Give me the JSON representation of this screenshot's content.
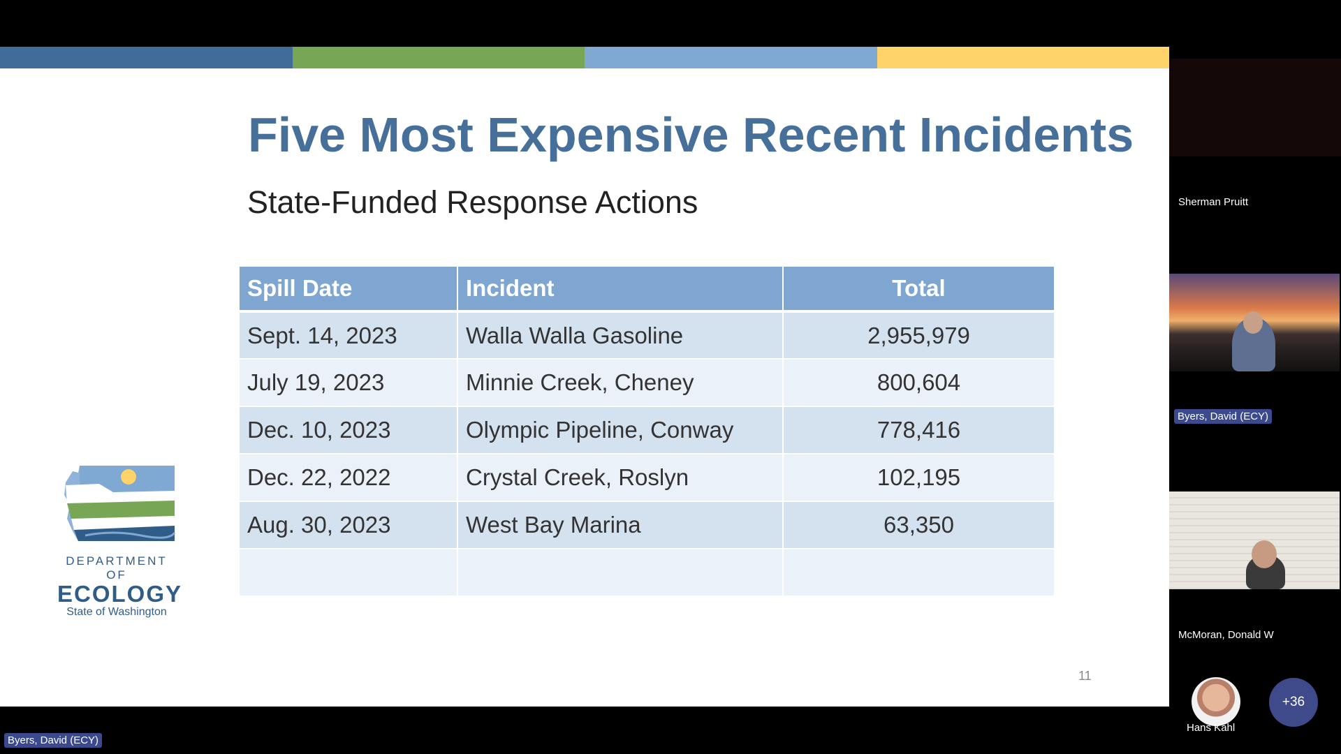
{
  "slide": {
    "accent_colors": [
      "#416b98",
      "#77a654",
      "#7fa8d2",
      "#fdd36a"
    ],
    "title": "Five Most Expensive Recent Incidents",
    "subtitle": "State-Funded Response Actions",
    "table": {
      "headers": [
        "Spill Date",
        "Incident",
        "Total"
      ],
      "rows": [
        [
          "Sept. 14, 2023",
          "Walla Walla Gasoline",
          "2,955,979"
        ],
        [
          "July 19, 2023",
          "Minnie Creek, Cheney",
          "800,604"
        ],
        [
          "Dec. 10, 2023",
          "Olympic Pipeline, Conway",
          "778,416"
        ],
        [
          "Dec. 22, 2022",
          "Crystal Creek, Roslyn",
          "102,195"
        ],
        [
          "Aug. 30, 2023",
          "West Bay Marina",
          "63,350"
        ],
        [
          "",
          "",
          ""
        ]
      ]
    },
    "logo": {
      "line1": "DEPARTMENT OF",
      "line2": "ECOLOGY",
      "line3": "State of Washington"
    },
    "page_number": "11"
  },
  "meeting": {
    "participants": [
      {
        "name": "Sherman Pruitt"
      },
      {
        "name": "Byers, David (ECY)"
      },
      {
        "name": "McMoran, Donald W"
      },
      {
        "name": "Hans Kahl"
      }
    ],
    "more_count": "+36",
    "presenter_tag": "Byers, David (ECY)"
  }
}
